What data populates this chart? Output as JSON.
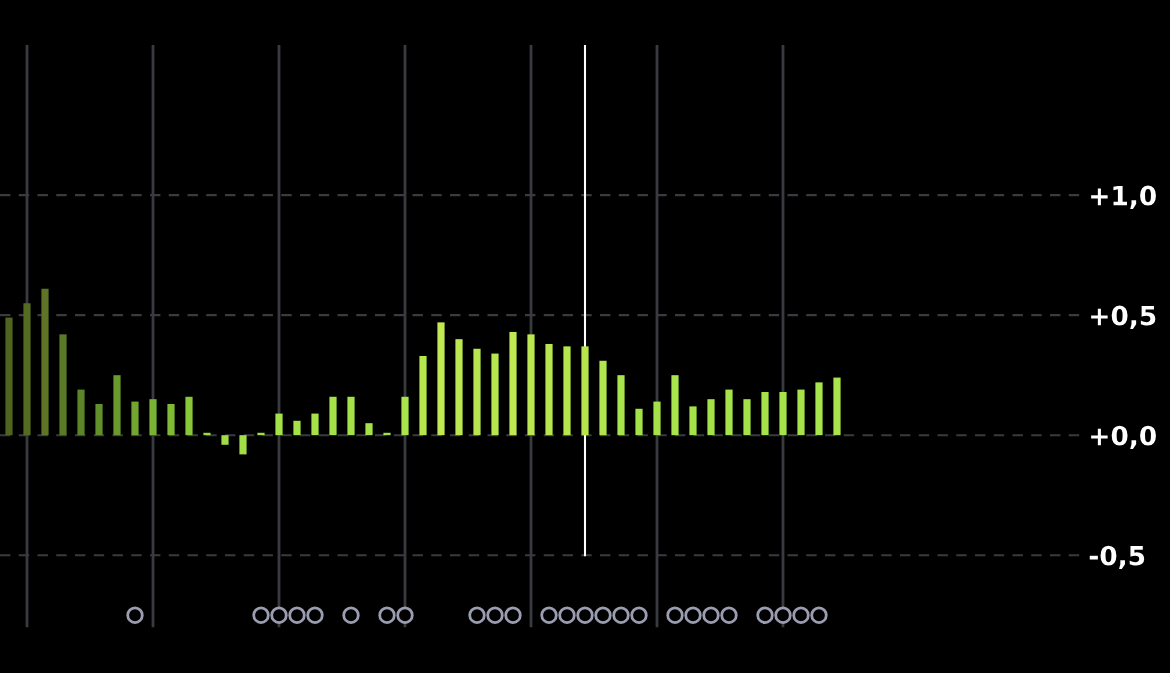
{
  "chart_data": {
    "type": "bar",
    "tick_labels": "y",
    "grid": true,
    "categories": [
      null,
      null,
      null,
      null,
      null,
      null,
      null,
      null,
      null,
      null,
      null,
      null,
      null,
      null,
      null,
      null,
      null,
      null,
      null,
      null,
      null,
      null,
      null,
      null,
      null,
      null,
      null,
      null,
      null,
      null,
      null,
      null,
      null,
      null,
      null,
      null,
      null,
      null,
      null,
      null,
      null,
      null,
      null,
      null,
      null,
      null,
      null,
      null,
      null,
      null,
      null,
      null,
      null,
      null,
      null,
      null,
      null,
      null,
      null,
      null
    ],
    "ylim": [
      -0.8,
      1.625
    ],
    "yticks": [
      {
        "value": 1,
        "label": "+1,0"
      },
      {
        "value": 0.5,
        "label": "+0,5"
      },
      {
        "value": 0,
        "label": "+0,0"
      },
      {
        "value": -0.5,
        "label": "-0,5"
      }
    ],
    "series": [
      {
        "values": [
          0.49,
          0.55,
          0.61,
          0.42,
          0.19,
          0.13,
          0.25,
          0.14,
          0.15,
          0.13,
          0.16,
          0.01,
          -0.04,
          -0.08,
          0.01,
          0.09,
          0.06,
          0.09,
          0.16,
          0.16,
          0.05,
          0.01,
          0.16,
          0.33,
          0.47,
          0.4,
          0.36,
          0.34,
          0.43,
          0.42,
          0.38,
          0.37,
          0.37,
          0.31,
          0.25,
          0.11,
          0.14,
          0.25,
          0.12,
          0.15,
          0.19,
          0.15,
          0.18,
          0.18,
          0.19,
          0.22,
          0.24,
          null,
          null,
          null,
          null,
          null,
          null,
          null,
          null,
          null,
          null,
          null,
          null,
          null
        ],
        "colors": [
          "#4f6420",
          "#556b22",
          "#5f7426",
          "#5a7a28",
          "#5c8428",
          "#62902b",
          "#6a9a2e",
          "#72a631",
          "#7ab233",
          "#80bb36",
          "#88c63a",
          "#9ddb45",
          "#a0dd46",
          "#a2df47",
          "#a3e048",
          "#a5e24a",
          "#a5e24a",
          "#a5e24a",
          "#a5e24a",
          "#a5e24a",
          "#a5e24a",
          "#a5e24a",
          "#a8e44b",
          "#b5e64e",
          "#c2e852",
          "#bde750",
          "#b8e64f",
          "#b5e64e",
          "#bfe851",
          "#bde750",
          "#b8e64f",
          "#b5e64e",
          "#b5e64e",
          "#b0e54d",
          "#a8e44b",
          "#a5e24a",
          "#a5e24a",
          "#a8e44b",
          "#a5e24a",
          "#a5e24a",
          "#a6e34a",
          "#a5e24a",
          "#a6e34a",
          "#a6e34a",
          "#a6e34a",
          "#a8e44b",
          "#aae44c",
          null,
          null,
          null,
          null,
          null,
          null,
          null,
          null,
          null,
          null,
          null,
          null,
          null
        ]
      },
      {
        "type": "scatter",
        "marker": "circle",
        "color": "#9a9eb0",
        "values": [
          null,
          null,
          null,
          null,
          null,
          null,
          null,
          -0.75,
          null,
          null,
          null,
          null,
          null,
          null,
          -0.75,
          -0.75,
          -0.75,
          -0.75,
          null,
          -0.75,
          null,
          -0.75,
          -0.75,
          null,
          null,
          null,
          -0.75,
          -0.75,
          -0.75,
          null,
          -0.75,
          -0.75,
          -0.75,
          -0.75,
          -0.75,
          -0.75,
          null,
          -0.75,
          -0.75,
          -0.75,
          -0.75,
          null,
          -0.75,
          -0.75,
          -0.75,
          -0.75,
          null,
          null,
          null,
          null,
          null,
          null,
          null,
          null,
          null,
          null,
          null,
          null,
          null,
          null
        ]
      }
    ]
  }
}
